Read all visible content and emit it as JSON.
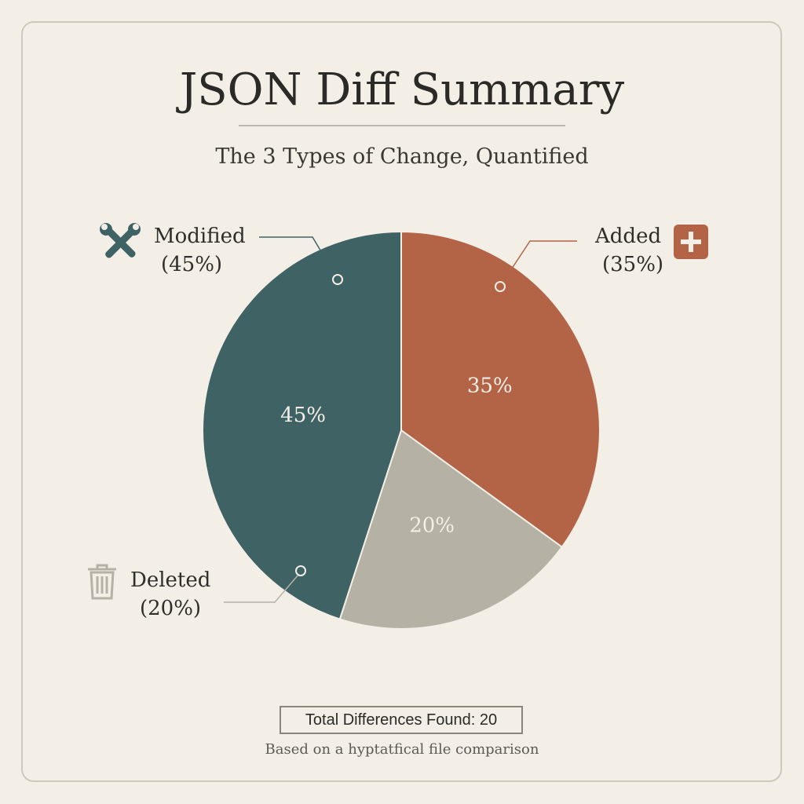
{
  "title": "JSON Diff Summary",
  "subtitle": "The 3 Types of Change, Quantified",
  "chart_data": {
    "type": "pie",
    "start": "top",
    "direction": "clockwise",
    "slices": [
      {
        "name": "Added",
        "value": 35,
        "label": "35%",
        "legend_pct": "(35%)",
        "color": "#b36447",
        "icon": "plus-square-icon"
      },
      {
        "name": "Deleted",
        "value": 20,
        "label": "20%",
        "legend_pct": "(20%)",
        "color": "#b5b1a5",
        "icon": "trash-icon"
      },
      {
        "name": "Modified",
        "value": 45,
        "label": "45%",
        "legend_pct": "(45%)",
        "color": "#3f6265",
        "icon": "wrench-screwdriver-icon"
      }
    ]
  },
  "footer": {
    "total": "Total Differences Found: 20",
    "note": "Based on a hyptatfical file comparison"
  }
}
